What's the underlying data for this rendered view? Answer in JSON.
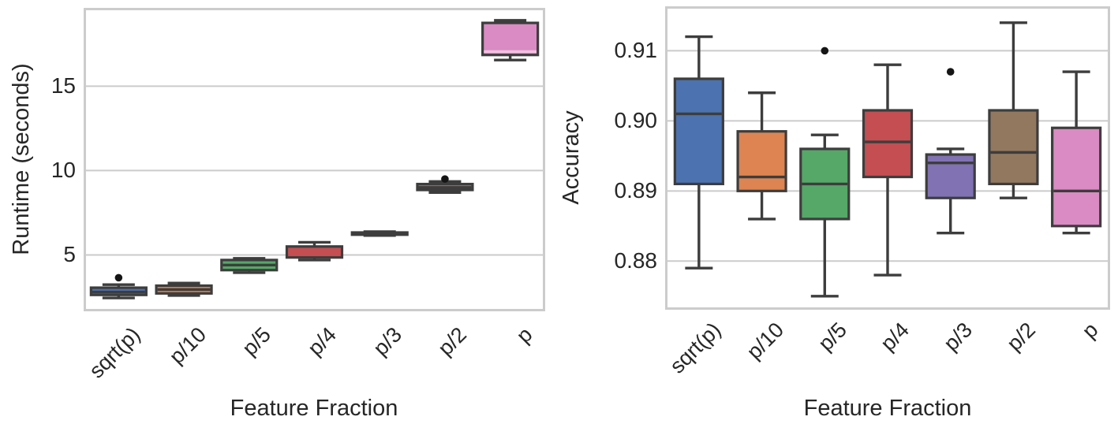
{
  "figure": {
    "background": "#ffffff",
    "description": "Two side-by-side box plots comparing feature fraction settings"
  },
  "colors": {
    "box_edge": "#3d3d3d",
    "gridline": "#cbcbcb",
    "spine": "#cccccc",
    "text": "#262626",
    "outlier_dot": "#151515",
    "palette": [
      "#4c72b0",
      "#dd8452",
      "#55a868",
      "#c44e52",
      "#8172b3",
      "#937860",
      "#da8bc3"
    ]
  },
  "chart_data": [
    {
      "type": "box",
      "title": "",
      "xlabel": "Feature Fraction",
      "ylabel": "Runtime (seconds)",
      "categories": [
        "sqrt(p)",
        "p/10",
        "p/5",
        "p/4",
        "p/3",
        "p/2",
        "p"
      ],
      "ylim": [
        1.8,
        19.5
      ],
      "grid": true,
      "legend": "none",
      "yticks": [
        {
          "value": 5,
          "label": "5"
        },
        {
          "value": 10,
          "label": "10"
        },
        {
          "value": 15,
          "label": "15"
        }
      ],
      "boxes": [
        {
          "category": "sqrt(p)",
          "whisker_low": 2.45,
          "q1": 2.63,
          "median": 2.8,
          "q3": 3.06,
          "whisker_high": 3.24,
          "outliers": [
            3.65
          ],
          "color": "#4c72b0"
        },
        {
          "category": "p/10",
          "whisker_low": 2.6,
          "q1": 2.72,
          "median": 2.95,
          "q3": 3.18,
          "whisker_high": 3.33,
          "outliers": [],
          "color": "#dd8452"
        },
        {
          "category": "p/5",
          "whisker_low": 3.95,
          "q1": 4.1,
          "median": 4.4,
          "q3": 4.7,
          "whisker_high": 4.8,
          "outliers": [],
          "color": "#55a868"
        },
        {
          "category": "p/4",
          "whisker_low": 4.7,
          "q1": 4.85,
          "median": 5.15,
          "q3": 5.5,
          "whisker_high": 5.75,
          "outliers": [],
          "color": "#c44e52",
          "median_color": "#c44e52"
        },
        {
          "category": "p/3",
          "whisker_low": 6.15,
          "q1": 6.2,
          "median": 6.27,
          "q3": 6.33,
          "whisker_high": 6.38,
          "outliers": [],
          "color": "#8172b3"
        },
        {
          "category": "p/2",
          "whisker_low": 8.7,
          "q1": 8.85,
          "median": 9.0,
          "q3": 9.2,
          "whisker_high": 9.35,
          "outliers": [
            9.5
          ],
          "color": "#937860"
        },
        {
          "category": "p",
          "whisker_low": 16.55,
          "q1": 16.85,
          "median": 17.05,
          "q3": 18.75,
          "whisker_high": 18.9,
          "outliers": [],
          "color": "#da8bc3",
          "median_color": "#eec3de"
        }
      ]
    },
    {
      "type": "box",
      "title": "",
      "xlabel": "Feature Fraction",
      "ylabel": "Accuracy",
      "categories": [
        "sqrt(p)",
        "p/10",
        "p/5",
        "p/4",
        "p/3",
        "p/2",
        "p"
      ],
      "ylim": [
        0.8734,
        0.916
      ],
      "grid": true,
      "legend": "none",
      "yticks": [
        {
          "value": 0.88,
          "label": "0.88"
        },
        {
          "value": 0.89,
          "label": "0.89"
        },
        {
          "value": 0.9,
          "label": "0.90"
        },
        {
          "value": 0.91,
          "label": "0.91"
        }
      ],
      "boxes": [
        {
          "category": "sqrt(p)",
          "whisker_low": 0.879,
          "q1": 0.891,
          "median": 0.901,
          "q3": 0.906,
          "whisker_high": 0.912,
          "outliers": [],
          "color": "#4c72b0"
        },
        {
          "category": "p/10",
          "whisker_low": 0.886,
          "q1": 0.89,
          "median": 0.892,
          "q3": 0.8985,
          "whisker_high": 0.904,
          "outliers": [],
          "color": "#dd8452"
        },
        {
          "category": "p/5",
          "whisker_low": 0.875,
          "q1": 0.886,
          "median": 0.891,
          "q3": 0.896,
          "whisker_high": 0.898,
          "outliers": [
            0.91
          ],
          "color": "#55a868"
        },
        {
          "category": "p/4",
          "whisker_low": 0.878,
          "q1": 0.892,
          "median": 0.897,
          "q3": 0.9015,
          "whisker_high": 0.908,
          "outliers": [],
          "color": "#c44e52"
        },
        {
          "category": "p/3",
          "whisker_low": 0.884,
          "q1": 0.889,
          "median": 0.894,
          "q3": 0.8952,
          "whisker_high": 0.896,
          "outliers": [
            0.907
          ],
          "color": "#8172b3"
        },
        {
          "category": "p/2",
          "whisker_low": 0.889,
          "q1": 0.891,
          "median": 0.8955,
          "q3": 0.9015,
          "whisker_high": 0.914,
          "outliers": [],
          "color": "#937860"
        },
        {
          "category": "p",
          "whisker_low": 0.884,
          "q1": 0.885,
          "median": 0.89,
          "q3": 0.899,
          "whisker_high": 0.907,
          "outliers": [],
          "color": "#da8bc3"
        }
      ]
    }
  ]
}
